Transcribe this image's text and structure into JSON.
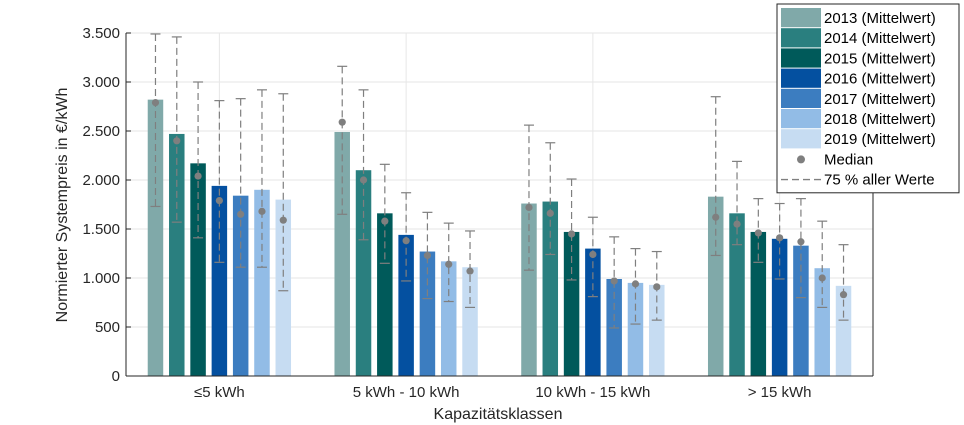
{
  "chart_data": {
    "type": "bar",
    "title": "",
    "xlabel": "Kapazitätsklassen",
    "ylabel": "Normierter Systempreis in €/kWh",
    "categories": [
      "≤5 kWh",
      "5 kWh - 10 kWh",
      "10 kWh - 15 kWh",
      "> 15 kWh"
    ],
    "ylim": [
      0,
      3500
    ],
    "yticks": [
      0,
      500,
      1000,
      1500,
      2000,
      2500,
      3000,
      3500
    ],
    "ytick_labels": [
      "0",
      "500",
      "1.000",
      "1.500",
      "2.000",
      "2.500",
      "3.000",
      "3.500"
    ],
    "grid": true,
    "legend_position": "top-right",
    "series": [
      {
        "name": "2013 (Mittelwert)",
        "color": "#80a9a9",
        "values": [
          2820,
          2490,
          1760,
          1830
        ],
        "median": [
          2790,
          2590,
          1720,
          1620
        ],
        "range_low": [
          1730,
          1650,
          1080,
          1230
        ],
        "range_high": [
          3490,
          3160,
          2560,
          2850
        ]
      },
      {
        "name": "2014 (Mittelwert)",
        "color": "#2a7f7f",
        "values": [
          2470,
          2100,
          1780,
          1660
        ],
        "median": [
          2400,
          2000,
          1660,
          1550
        ],
        "range_low": [
          1570,
          1390,
          1240,
          1340
        ],
        "range_high": [
          3460,
          2920,
          2380,
          2190
        ]
      },
      {
        "name": "2015 (Mittelwert)",
        "color": "#005a5a",
        "values": [
          2170,
          1660,
          1470,
          1470
        ],
        "median": [
          2040,
          1580,
          1450,
          1460
        ],
        "range_low": [
          1410,
          1150,
          980,
          1160
        ],
        "range_high": [
          3000,
          2160,
          2010,
          1810
        ]
      },
      {
        "name": "2016 (Mittelwert)",
        "color": "#0450a0",
        "values": [
          1940,
          1440,
          1300,
          1400
        ],
        "median": [
          1790,
          1380,
          1240,
          1410
        ],
        "range_low": [
          1160,
          970,
          810,
          990
        ],
        "range_high": [
          2810,
          1870,
          1620,
          1760
        ]
      },
      {
        "name": "2017 (Mittelwert)",
        "color": "#3c7dc0",
        "values": [
          1840,
          1270,
          990,
          1330
        ],
        "median": [
          1650,
          1230,
          970,
          1370
        ],
        "range_low": [
          1110,
          790,
          490,
          800
        ],
        "range_high": [
          2830,
          1670,
          1420,
          1810
        ]
      },
      {
        "name": "2018 (Mittelwert)",
        "color": "#92bce6",
        "values": [
          1900,
          1170,
          950,
          1100
        ],
        "median": [
          1680,
          1140,
          940,
          1000
        ],
        "range_low": [
          1110,
          760,
          530,
          700
        ],
        "range_high": [
          2920,
          1560,
          1300,
          1580
        ]
      },
      {
        "name": "2019 (Mittelwert)",
        "color": "#c6dcf2",
        "values": [
          1800,
          1110,
          930,
          920
        ],
        "median": [
          1590,
          1070,
          910,
          830
        ],
        "range_low": [
          870,
          700,
          570,
          570
        ],
        "range_high": [
          2880,
          1480,
          1270,
          1340
        ]
      }
    ],
    "legend_extra": [
      {
        "name": "Median",
        "marker": "dot",
        "color": "#7f7f7f"
      },
      {
        "name": "75 % aller Werte",
        "marker": "dashed",
        "color": "#7f7f7f"
      }
    ]
  }
}
